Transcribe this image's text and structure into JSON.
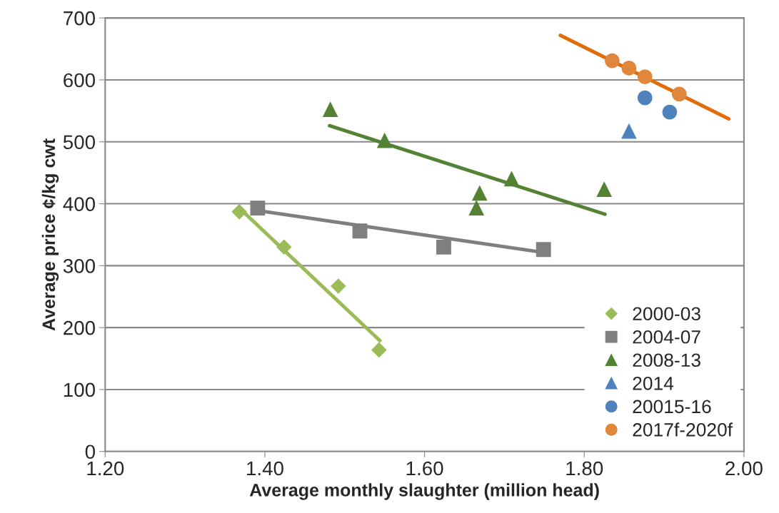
{
  "chart_data": {
    "type": "scatter",
    "xlabel": "Average monthly slaughter (million head)",
    "ylabel": "Average price ¢/kg cwt",
    "xlim": [
      1.2,
      2.0
    ],
    "xticks": [
      {
        "value": 1.2,
        "label": "1.20"
      },
      {
        "value": 1.4,
        "label": "1.40"
      },
      {
        "value": 1.6,
        "label": "1.60"
      },
      {
        "value": 1.8,
        "label": "1.80"
      },
      {
        "value": 2.0,
        "label": "2.00"
      }
    ],
    "ylim": [
      0,
      700
    ],
    "yticks": [
      0,
      100,
      200,
      300,
      400,
      500,
      600,
      700
    ],
    "grid": "y",
    "legend": "bottom right",
    "series": [
      {
        "name": "2000-03",
        "color": "#9bbb59",
        "marker": "diamond",
        "x": [
          1.368,
          1.424,
          1.492,
          1.543
        ],
        "values": [
          387,
          330,
          267,
          164
        ]
      },
      {
        "name": "2004-07",
        "color": "#7f7f7f",
        "marker": "square",
        "x": [
          1.391,
          1.519,
          1.624,
          1.749
        ],
        "values": [
          393,
          356,
          330,
          326
        ]
      },
      {
        "name": "2008-13",
        "color": "#548235",
        "marker": "triangle",
        "x": [
          1.482,
          1.55,
          1.665,
          1.669,
          1.709,
          1.825
        ],
        "values": [
          552,
          502,
          393,
          417,
          440,
          423
        ]
      },
      {
        "name": "2014",
        "color": "#4f81bd",
        "marker": "triangle",
        "x": [
          1.856
        ],
        "values": [
          517
        ]
      },
      {
        "name": "20015-16",
        "color": "#4f81bd",
        "marker": "circle",
        "x": [
          1.876,
          1.907
        ],
        "values": [
          571,
          548
        ]
      },
      {
        "name": "2017f-2020f",
        "color": "#e0873c",
        "marker": "circle",
        "x": [
          1.835,
          1.856,
          1.876,
          1.919
        ],
        "values": [
          631,
          619,
          605,
          577
        ]
      },
      {
        "type": "line",
        "color": "#9bbb59",
        "marker": "none",
        "x": [
          1.368,
          1.544
        ],
        "values": [
          393,
          179
        ]
      },
      {
        "type": "line",
        "color": "#7f7f7f",
        "marker": "none",
        "x": [
          1.391,
          1.74
        ],
        "values": [
          389,
          323
        ]
      },
      {
        "type": "line",
        "color": "#548235",
        "marker": "none",
        "x": [
          1.481,
          1.826
        ],
        "values": [
          526,
          383
        ]
      },
      {
        "type": "line",
        "color": "#e36c09",
        "marker": "none",
        "x": [
          1.77,
          1.981
        ],
        "values": [
          672,
          537
        ]
      }
    ]
  }
}
